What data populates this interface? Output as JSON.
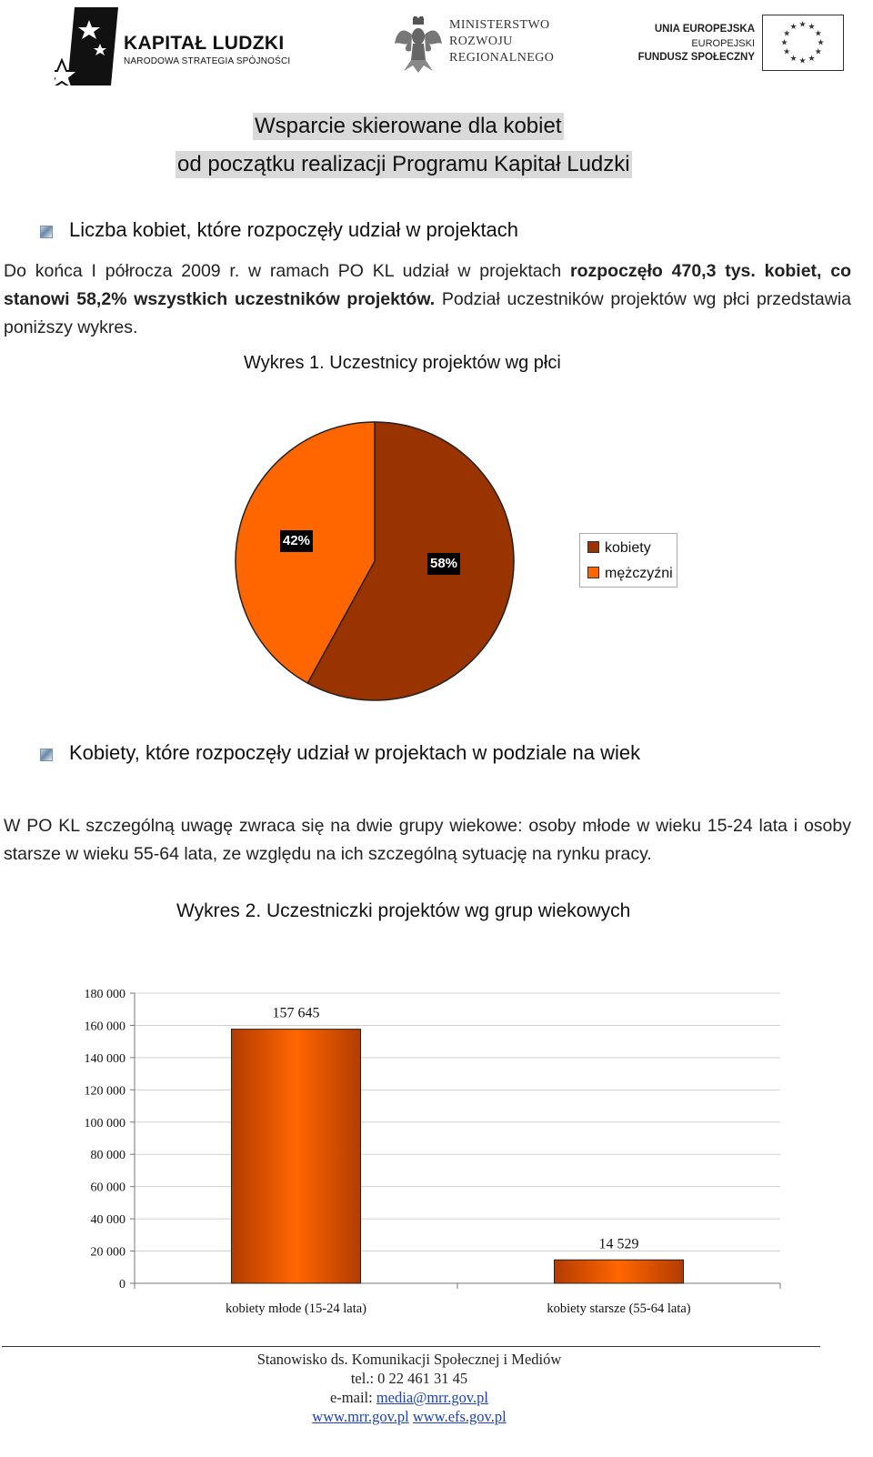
{
  "header": {
    "kapital_ludzki": {
      "title": "KAPITAŁ LUDZKI",
      "subtitle": "NARODOWA STRATEGIA SPÓJNOŚCI"
    },
    "ministry": {
      "line1": "MINISTERSTWO",
      "line2": "ROZWOJU",
      "line3": "REGIONALNEGO"
    },
    "eu": {
      "line1": "UNIA EUROPEJSKA",
      "line2": "EUROPEJSKI",
      "line3": "FUNDUSZ SPOŁECZNY"
    }
  },
  "title": {
    "line1": "Wsparcie skierowane dla kobiet",
    "line2": "od początku realizacji Programu Kapitał Ludzki"
  },
  "section1": {
    "heading": "Liczba kobiet, które rozpoczęły udział w projektach",
    "para_part1": "Do końca I półrocza 2009 r. w ramach PO KL udział w projektach ",
    "para_bold": "rozpoczęło 470,3 tys. kobiet, co stanowi 58,2% wszystkich uczestników projektów.",
    "para_part2": " Podział uczestników projektów wg płci przedstawia poniższy wykres.",
    "chart_caption": "Wykres 1. Uczestnicy projektów wg płci"
  },
  "section2": {
    "heading": "Kobiety, które rozpoczęły udział w projektach w podziale na wiek",
    "para": "W PO KL szczególną uwagę zwraca się na dwie grupy wiekowe: osoby młode w wieku 15-24 lata i osoby starsze w wieku 55-64 lata, ze względu na ich szczególną sytuację na rynku pracy.",
    "chart_caption": "Wykres 2. Uczestniczki projektów wg grup wiekowych"
  },
  "chart_data": [
    {
      "type": "pie",
      "title": "",
      "labels": [
        "kobiety",
        "mężczyźni"
      ],
      "values": [
        58,
        42
      ],
      "value_labels": [
        "58%",
        "42%"
      ],
      "colors": [
        "#993300",
        "#ff6600"
      ],
      "legend_position": "right"
    },
    {
      "type": "bar",
      "title": "",
      "categories": [
        "kobiety młode (15-24 lata)",
        "kobiety starsze (55-64 lata)"
      ],
      "values": [
        157645,
        14529
      ],
      "value_labels": [
        "157 645",
        "14 529"
      ],
      "ylim": [
        0,
        180000
      ],
      "yticks": [
        0,
        20000,
        40000,
        60000,
        80000,
        100000,
        120000,
        140000,
        160000,
        180000
      ],
      "ytick_labels": [
        "0",
        "20 000",
        "40 000",
        "60 000",
        "80 000",
        "100 000",
        "120 000",
        "140 000",
        "160 000",
        "180 000"
      ],
      "color": "#ff6600",
      "grid": true,
      "xlabel": "",
      "ylabel": ""
    }
  ],
  "footer": {
    "line1": "Stanowisko ds. Komunikacji Społecznej i Mediów",
    "line2": "tel.: 0 22 461 31 45",
    "email_prefix": "e-mail: ",
    "email": "media@mrr.gov.pl",
    "link1": "www.mrr.gov.pl",
    "link2": "www.efs.gov.pl"
  }
}
